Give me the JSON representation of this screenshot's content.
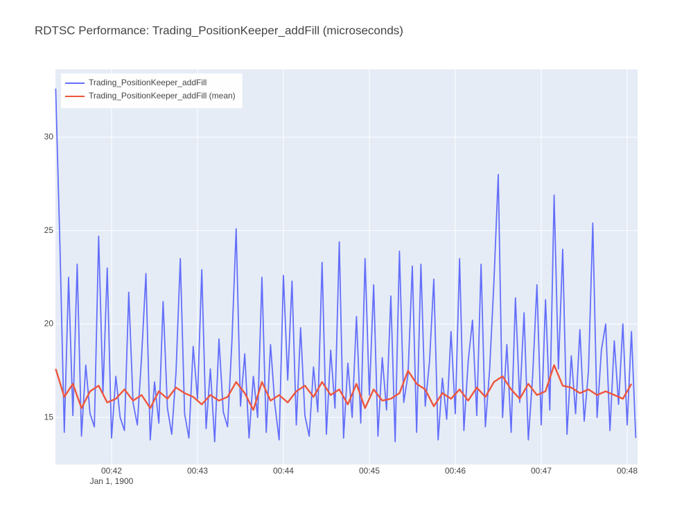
{
  "chart_data": {
    "type": "line",
    "title": "RDTSC Performance: Trading_PositionKeeper_addFill (microseconds)",
    "x_date_label": "Jan 1, 1900",
    "xlim": [
      41.347,
      48.121
    ],
    "xticks": [
      {
        "value": 42,
        "label": "00:42"
      },
      {
        "value": 43,
        "label": "00:43"
      },
      {
        "value": 44,
        "label": "00:44"
      },
      {
        "value": 45,
        "label": "00:45"
      },
      {
        "value": 46,
        "label": "00:46"
      },
      {
        "value": 47,
        "label": "00:47"
      },
      {
        "value": 48,
        "label": "00:48"
      }
    ],
    "ylim": [
      12.48,
      33.63
    ],
    "yticks": [
      15,
      20,
      25,
      30
    ],
    "grid": true,
    "legend": "top-left",
    "series": [
      {
        "name": "Trading_PositionKeeper_addFill",
        "color": "#636efa",
        "x": [
          41.35,
          41.4,
          41.45,
          41.5,
          41.55,
          41.6,
          41.65,
          41.7,
          41.75,
          41.8,
          41.85,
          41.9,
          41.95,
          42.0,
          42.05,
          42.1,
          42.15,
          42.2,
          42.25,
          42.3,
          42.35,
          42.4,
          42.45,
          42.5,
          42.55,
          42.6,
          42.65,
          42.7,
          42.75,
          42.8,
          42.85,
          42.9,
          42.95,
          43.0,
          43.05,
          43.1,
          43.15,
          43.2,
          43.25,
          43.3,
          43.35,
          43.4,
          43.45,
          43.5,
          43.55,
          43.6,
          43.65,
          43.7,
          43.75,
          43.8,
          43.85,
          43.9,
          43.95,
          44.0,
          44.05,
          44.1,
          44.15,
          44.2,
          44.25,
          44.3,
          44.35,
          44.4,
          44.45,
          44.5,
          44.55,
          44.6,
          44.65,
          44.7,
          44.75,
          44.8,
          44.85,
          44.9,
          44.95,
          45.0,
          45.05,
          45.1,
          45.15,
          45.2,
          45.25,
          45.3,
          45.35,
          45.4,
          45.45,
          45.5,
          45.55,
          45.6,
          45.65,
          45.7,
          45.75,
          45.8,
          45.85,
          45.9,
          45.95,
          46.0,
          46.05,
          46.1,
          46.15,
          46.2,
          46.25,
          46.3,
          46.35,
          46.4,
          46.45,
          46.5,
          46.55,
          46.6,
          46.65,
          46.7,
          46.75,
          46.8,
          46.85,
          46.9,
          46.95,
          47.0,
          47.05,
          47.1,
          47.15,
          47.2,
          47.25,
          47.3,
          47.35,
          47.4,
          47.45,
          47.5,
          47.55,
          47.6,
          47.65,
          47.7,
          47.75,
          47.8,
          47.85,
          47.9,
          47.95,
          48.0,
          48.05,
          48.1
        ],
        "values": [
          32.6,
          24.1,
          14.2,
          22.5,
          15.1,
          23.2,
          14.0,
          17.8,
          15.2,
          14.5,
          24.7,
          16.3,
          23.0,
          13.9,
          17.2,
          15.0,
          14.3,
          21.7,
          15.8,
          14.6,
          18.3,
          22.7,
          13.8,
          16.9,
          14.7,
          21.2,
          15.5,
          14.1,
          17.4,
          23.5,
          15.2,
          13.9,
          18.8,
          16.0,
          22.9,
          14.4,
          17.6,
          13.7,
          19.2,
          15.3,
          14.5,
          19.0,
          25.1,
          15.6,
          18.4,
          13.9,
          17.2,
          15.0,
          22.5,
          14.2,
          18.9,
          15.7,
          13.8,
          22.6,
          17.0,
          22.3,
          14.6,
          19.8,
          15.1,
          14.0,
          17.7,
          15.3,
          23.3,
          14.1,
          18.6,
          15.5,
          24.4,
          13.9,
          17.9,
          15.0,
          20.4,
          14.7,
          23.5,
          16.2,
          22.1,
          14.0,
          18.2,
          15.4,
          21.5,
          13.7,
          23.9,
          15.8,
          17.3,
          23.1,
          14.2,
          23.2,
          15.6,
          18.0,
          22.4,
          13.8,
          17.1,
          14.9,
          19.6,
          15.2,
          23.5,
          14.3,
          18.0,
          20.2,
          15.1,
          23.2,
          14.5,
          17.6,
          22.3,
          28.0,
          15.0,
          18.9,
          14.2,
          21.4,
          15.8,
          20.6,
          13.8,
          17.2,
          22.1,
          14.6,
          21.3,
          15.4,
          26.9,
          17.6,
          24.0,
          14.1,
          18.3,
          15.2,
          19.7,
          14.8,
          17.5,
          25.4,
          15.0,
          18.6,
          20.0,
          14.3,
          19.1,
          15.7,
          20.0,
          14.6,
          19.6,
          13.9
        ]
      },
      {
        "name": "Trading_PositionKeeper_addFill (mean)",
        "color": "#ef553b",
        "x": [
          41.35,
          41.45,
          41.55,
          41.65,
          41.75,
          41.85,
          41.95,
          42.05,
          42.15,
          42.25,
          42.35,
          42.45,
          42.55,
          42.65,
          42.75,
          42.85,
          42.95,
          43.05,
          43.15,
          43.25,
          43.35,
          43.45,
          43.55,
          43.65,
          43.75,
          43.85,
          43.95,
          44.05,
          44.15,
          44.25,
          44.35,
          44.45,
          44.55,
          44.65,
          44.75,
          44.85,
          44.95,
          45.05,
          45.15,
          45.25,
          45.35,
          45.45,
          45.55,
          45.65,
          45.75,
          45.85,
          45.95,
          46.05,
          46.15,
          46.25,
          46.35,
          46.45,
          46.55,
          46.65,
          46.75,
          46.85,
          46.95,
          47.05,
          47.15,
          47.25,
          47.35,
          47.45,
          47.55,
          47.65,
          47.75,
          47.85,
          47.95,
          48.05
        ],
        "values": [
          17.6,
          16.1,
          16.8,
          15.5,
          16.4,
          16.7,
          15.8,
          16.0,
          16.5,
          15.9,
          16.2,
          15.5,
          16.4,
          16.0,
          16.6,
          16.3,
          16.1,
          15.7,
          16.2,
          15.9,
          16.1,
          16.9,
          16.3,
          15.4,
          16.9,
          15.9,
          16.2,
          15.8,
          16.4,
          16.7,
          16.1,
          16.9,
          16.2,
          16.5,
          15.7,
          16.8,
          15.5,
          16.5,
          15.9,
          16.0,
          16.3,
          17.5,
          16.8,
          16.5,
          15.6,
          16.3,
          16.0,
          16.5,
          15.9,
          16.6,
          16.1,
          16.9,
          17.2,
          16.5,
          16.0,
          16.8,
          16.2,
          16.4,
          17.8,
          16.7,
          16.6,
          16.3,
          16.5,
          16.2,
          16.4,
          16.2,
          16.0,
          16.8
        ]
      }
    ]
  }
}
